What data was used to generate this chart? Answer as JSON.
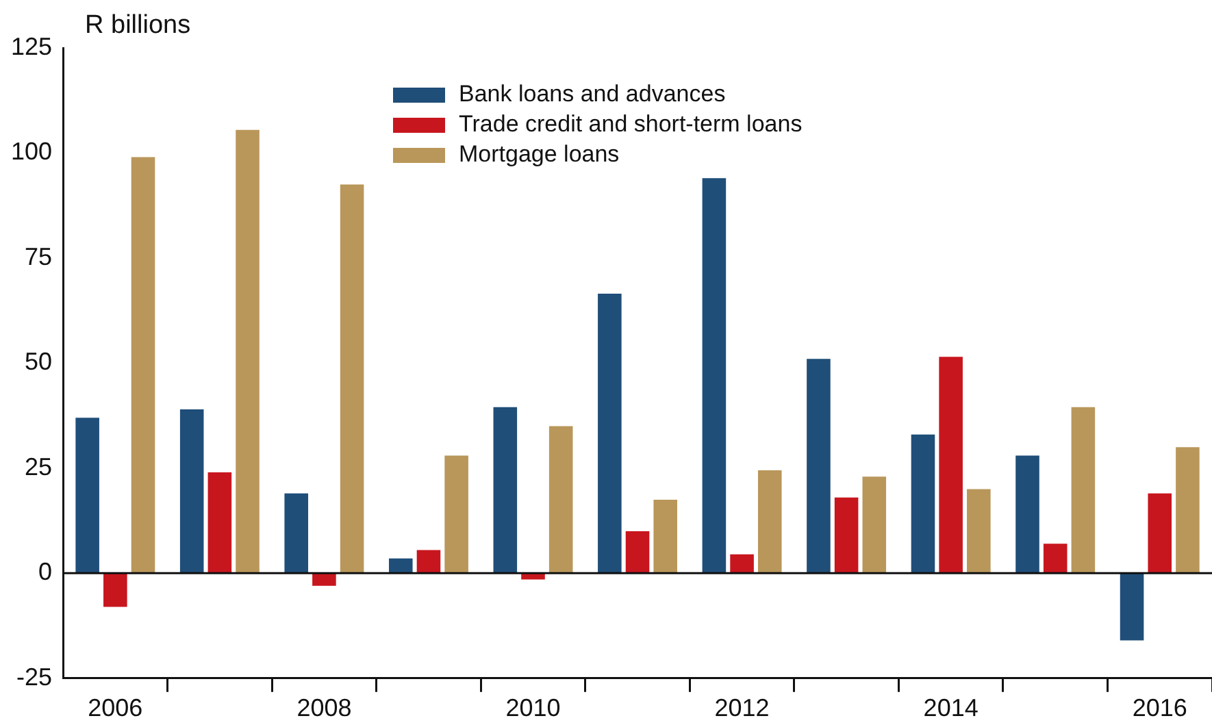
{
  "chart_data": {
    "type": "bar",
    "ylabel": "R billions",
    "categories": [
      "2006",
      null,
      "2008",
      null,
      "2010",
      null,
      "2012",
      null,
      "2014",
      null,
      "2016"
    ],
    "series": [
      {
        "name": "Bank loans and advances",
        "color": "#1f4e79",
        "values": [
          37,
          39,
          19,
          3.5,
          39.5,
          66.5,
          94,
          51,
          33,
          28,
          -16
        ]
      },
      {
        "name": "Trade credit and short-term loans",
        "color": "#c8161e",
        "values": [
          -8,
          24,
          -3,
          5.5,
          -1.5,
          10,
          4.5,
          18,
          51.5,
          7,
          19
        ]
      },
      {
        "name": "Mortgage loans",
        "color": "#b9975a",
        "values": [
          99,
          105.5,
          92.5,
          28,
          35,
          17.5,
          24.5,
          23,
          20,
          39.5,
          30
        ]
      }
    ],
    "ylim": [
      -25,
      125
    ],
    "yticks": [
      -25,
      0,
      25,
      50,
      75,
      100,
      125
    ],
    "grid": false,
    "legend": "top",
    "ref_lines": [
      {
        "axis": "y",
        "value": 0,
        "color": "#111111"
      }
    ]
  }
}
